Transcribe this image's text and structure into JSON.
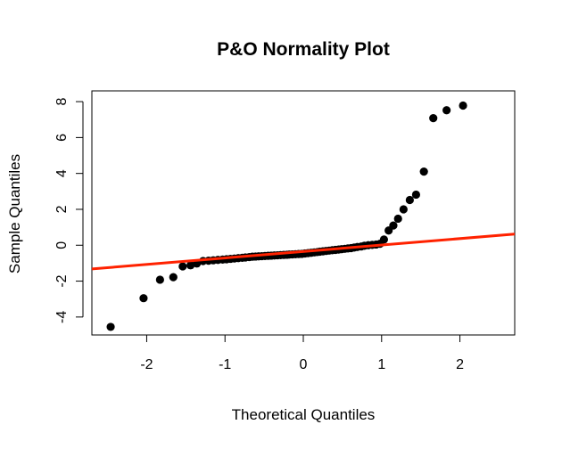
{
  "chart_data": {
    "type": "scatter",
    "title": "P&O Normality Plot",
    "xlabel": "Theoretical Quantiles",
    "ylabel": "Sample Quantiles",
    "xlim": [
      -2.7,
      2.7
    ],
    "ylim": [
      -5,
      8.6
    ],
    "x_ticks": [
      -2,
      -1,
      0,
      1,
      2
    ],
    "x_tick_labels": [
      "-2",
      "-1",
      "0",
      "1",
      "2"
    ],
    "y_ticks": [
      -4,
      -2,
      0,
      2,
      4,
      6,
      8
    ],
    "y_tick_labels": [
      "-4",
      "-2",
      "0",
      "2",
      "4",
      "6",
      "8"
    ],
    "grid": false,
    "reference_line": {
      "intercept": -0.35,
      "slope": 0.36,
      "color": "#ff2200"
    },
    "point_color": "#000000",
    "points": [
      [
        -2.46,
        -4.55
      ],
      [
        -2.04,
        -2.95
      ],
      [
        -1.83,
        -1.92
      ],
      [
        -1.66,
        -1.78
      ],
      [
        -1.54,
        -1.18
      ],
      [
        -1.44,
        -1.12
      ],
      [
        -1.36,
        -1.02
      ],
      [
        -1.28,
        -0.88
      ],
      [
        -1.21,
        -0.86
      ],
      [
        -1.15,
        -0.84
      ],
      [
        -1.09,
        -0.82
      ],
      [
        -1.03,
        -0.8
      ],
      [
        -0.98,
        -0.78
      ],
      [
        -0.93,
        -0.76
      ],
      [
        -0.88,
        -0.74
      ],
      [
        -0.83,
        -0.72
      ],
      [
        -0.78,
        -0.7
      ],
      [
        -0.74,
        -0.68
      ],
      [
        -0.69,
        -0.66
      ],
      [
        -0.65,
        -0.64
      ],
      [
        -0.61,
        -0.63
      ],
      [
        -0.57,
        -0.62
      ],
      [
        -0.53,
        -0.61
      ],
      [
        -0.49,
        -0.6
      ],
      [
        -0.45,
        -0.59
      ],
      [
        -0.41,
        -0.58
      ],
      [
        -0.37,
        -0.57
      ],
      [
        -0.33,
        -0.56
      ],
      [
        -0.29,
        -0.55
      ],
      [
        -0.25,
        -0.54
      ],
      [
        -0.21,
        -0.53
      ],
      [
        -0.18,
        -0.52
      ],
      [
        -0.14,
        -0.51
      ],
      [
        -0.1,
        -0.5
      ],
      [
        -0.06,
        -0.49
      ],
      [
        -0.02,
        -0.48
      ],
      [
        0.02,
        -0.46
      ],
      [
        0.06,
        -0.44
      ],
      [
        0.1,
        -0.42
      ],
      [
        0.14,
        -0.4
      ],
      [
        0.18,
        -0.38
      ],
      [
        0.21,
        -0.36
      ],
      [
        0.25,
        -0.34
      ],
      [
        0.29,
        -0.32
      ],
      [
        0.33,
        -0.3
      ],
      [
        0.37,
        -0.28
      ],
      [
        0.41,
        -0.26
      ],
      [
        0.45,
        -0.24
      ],
      [
        0.49,
        -0.22
      ],
      [
        0.53,
        -0.2
      ],
      [
        0.57,
        -0.18
      ],
      [
        0.61,
        -0.16
      ],
      [
        0.65,
        -0.13
      ],
      [
        0.69,
        -0.1
      ],
      [
        0.74,
        -0.07
      ],
      [
        0.78,
        -0.03
      ],
      [
        0.83,
        0.0
      ],
      [
        0.88,
        0.02
      ],
      [
        0.93,
        0.04
      ],
      [
        0.98,
        0.08
      ],
      [
        1.03,
        0.32
      ],
      [
        1.09,
        0.82
      ],
      [
        1.15,
        1.1
      ],
      [
        1.21,
        1.48
      ],
      [
        1.28,
        2.0
      ],
      [
        1.36,
        2.52
      ],
      [
        1.44,
        2.82
      ],
      [
        1.54,
        4.1
      ],
      [
        1.66,
        7.08
      ],
      [
        1.83,
        7.52
      ],
      [
        2.04,
        7.78
      ]
    ]
  }
}
